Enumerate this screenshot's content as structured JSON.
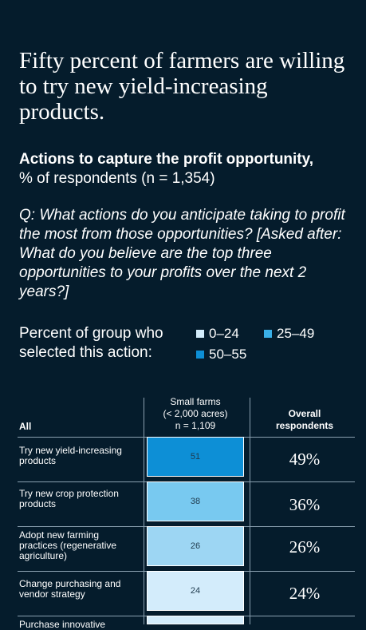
{
  "headline": "Fifty percent of farmers are willing to try new yield-increasing products.",
  "subtitle_bold": "Actions to capture the profit opportunity,",
  "subtitle_rest": "% of respondents (n = 1,354)",
  "question": "Q: What actions do you anticipate taking to profit the most from those opportunities? [Asked after: What do you believe are the top three opportunities to your profits over the next 2 years?]",
  "legend": {
    "title": "Percent of group who selected this action:",
    "items": [
      {
        "label": "0–24",
        "color": "#d3ecfb"
      },
      {
        "label": "25–49",
        "color": "#3ab0e8"
      },
      {
        "label": "50–55",
        "color": "#0d8fd6"
      }
    ]
  },
  "chart_data": {
    "type": "table",
    "row_header": "All",
    "columns": [
      {
        "title": "Small farms",
        "subtitle": "(< 2,000 acres)",
        "n": "n = 1,109"
      },
      {
        "title": "Overall respondents"
      }
    ],
    "rows": [
      {
        "label": "Try new yield-increasing products",
        "small_farms": 51,
        "small_farms_text": "51",
        "overall": "49%",
        "color": "#0d8fd6"
      },
      {
        "label": "Try new crop protection products",
        "small_farms": 38,
        "small_farms_text": "38",
        "overall": "36%",
        "color": "#78c9f0"
      },
      {
        "label": "Adopt new farming practices (regenerative agriculture)",
        "small_farms": 26,
        "small_farms_text": "26",
        "overall": "26%",
        "color": "#9dd6f3"
      },
      {
        "label": "Change purchasing and vendor strategy",
        "small_farms": 24,
        "small_farms_text": "24",
        "overall": "24%",
        "color": "#d3ecfb"
      },
      {
        "label": "Purchase innovative",
        "small_farms": null,
        "small_farms_text": "",
        "overall": "",
        "color": "#d3ecfb"
      }
    ]
  }
}
